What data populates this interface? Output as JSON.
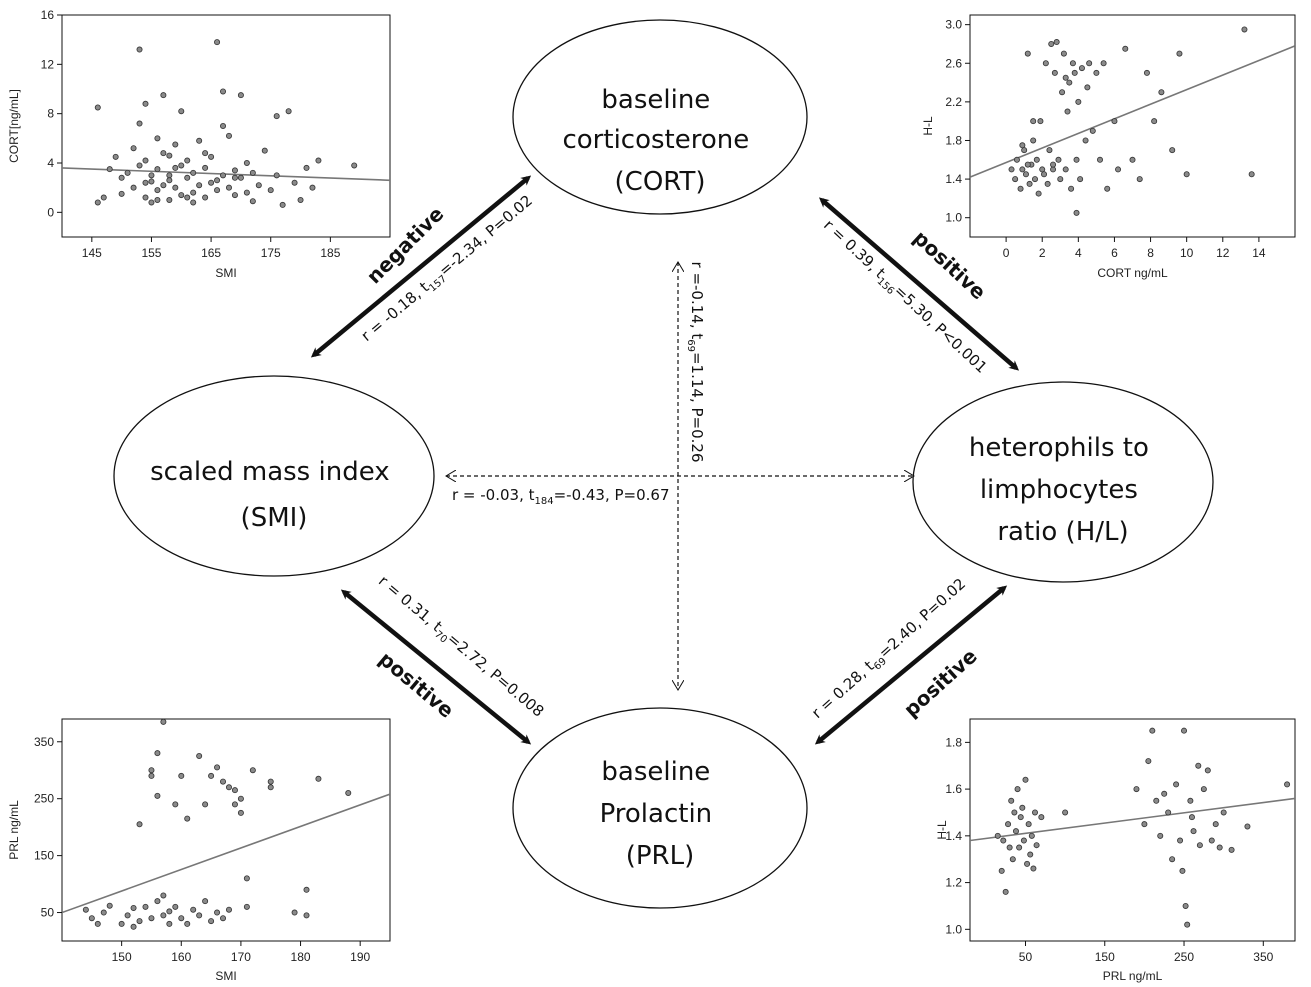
{
  "nodes": [
    {
      "id": "cort",
      "lines": [
        "baseline",
        "corticosterone",
        "(CORT)"
      ]
    },
    {
      "id": "smi",
      "lines": [
        "scaled mass index",
        "(SMI)"
      ]
    },
    {
      "id": "hl",
      "lines": [
        "heterophils to",
        "limphocytes",
        "ratio (H/L)"
      ]
    },
    {
      "id": "prl",
      "lines": [
        "baseline",
        "Prolactin",
        "(PRL)"
      ]
    }
  ],
  "edges": [
    {
      "id": "smi-cort",
      "direction": "negative",
      "r": "r = -0.18, t",
      "df": "157",
      "stats": "=-2.34, P=0.02"
    },
    {
      "id": "cort-hl",
      "direction": "positive",
      "r": "r = 0.39, t",
      "df": "156",
      "stats": "=5.30, P<0.001"
    },
    {
      "id": "cort-prl",
      "direction": "",
      "r": "r =-0.14, t",
      "df": "69",
      "stats": "=1.14, P=0.26"
    },
    {
      "id": "smi-hl",
      "direction": "",
      "r": "r = -0.03, t",
      "df": "184",
      "stats": "=-0.43, P=0.67"
    },
    {
      "id": "smi-prl",
      "direction": "positive",
      "r": "r = 0.31, t",
      "df": "70",
      "stats": "=2.72, P=0.008"
    },
    {
      "id": "prl-hl",
      "direction": "positive",
      "r": "r = 0.28, t",
      "df": "69",
      "stats": "=2.40, P=0.02"
    }
  ],
  "colors": {
    "ink": "#111111",
    "point_fill": "#8a8a8a",
    "fit_line": "#777777"
  },
  "chart_data": [
    {
      "id": "smi-vs-cort",
      "type": "scatter",
      "xlabel": "SMI",
      "ylabel": "CORT[ng/mL]",
      "xlim": [
        140,
        195
      ],
      "ylim": [
        -2,
        16
      ],
      "xticks": [
        145,
        155,
        165,
        175,
        185
      ],
      "yticks": [
        0,
        4,
        8,
        12,
        16
      ],
      "fit": [
        [
          140,
          3.6
        ],
        [
          195,
          2.6
        ]
      ],
      "points": [
        [
          146,
          0.8
        ],
        [
          146,
          8.5
        ],
        [
          147,
          1.2
        ],
        [
          148,
          3.5
        ],
        [
          149,
          4.5
        ],
        [
          150,
          2.8
        ],
        [
          150,
          1.5
        ],
        [
          151,
          3.2
        ],
        [
          152,
          5.2
        ],
        [
          152,
          2.0
        ],
        [
          153,
          7.2
        ],
        [
          153,
          3.8
        ],
        [
          153,
          13.2
        ],
        [
          154,
          1.2
        ],
        [
          154,
          4.2
        ],
        [
          154,
          8.8
        ],
        [
          155,
          2.5
        ],
        [
          155,
          3.0
        ],
        [
          155,
          0.8
        ],
        [
          156,
          6.0
        ],
        [
          156,
          1.8
        ],
        [
          156,
          3.5
        ],
        [
          157,
          2.2
        ],
        [
          157,
          4.8
        ],
        [
          157,
          9.5
        ],
        [
          158,
          1.0
        ],
        [
          158,
          3.0
        ],
        [
          158,
          2.6
        ],
        [
          159,
          5.5
        ],
        [
          159,
          2.0
        ],
        [
          160,
          3.8
        ],
        [
          160,
          1.4
        ],
        [
          160,
          8.2
        ],
        [
          161,
          2.8
        ],
        [
          161,
          4.2
        ],
        [
          162,
          1.6
        ],
        [
          162,
          3.2
        ],
        [
          163,
          5.8
        ],
        [
          163,
          2.2
        ],
        [
          164,
          1.2
        ],
        [
          164,
          3.6
        ],
        [
          165,
          4.5
        ],
        [
          165,
          2.4
        ],
        [
          166,
          13.8
        ],
        [
          166,
          1.8
        ],
        [
          167,
          3.0
        ],
        [
          167,
          9.8
        ],
        [
          168,
          2.0
        ],
        [
          168,
          6.2
        ],
        [
          169,
          3.4
        ],
        [
          169,
          1.4
        ],
        [
          170,
          9.5
        ],
        [
          170,
          2.8
        ],
        [
          171,
          4.0
        ],
        [
          171,
          1.6
        ],
        [
          172,
          3.2
        ],
        [
          173,
          2.2
        ],
        [
          174,
          5.0
        ],
        [
          175,
          1.8
        ],
        [
          176,
          7.8
        ],
        [
          176,
          3.0
        ],
        [
          177,
          0.6
        ],
        [
          178,
          8.2
        ],
        [
          179,
          2.4
        ],
        [
          180,
          1.0
        ],
        [
          181,
          3.6
        ],
        [
          182,
          2.0
        ],
        [
          183,
          4.2
        ],
        [
          189,
          3.8
        ],
        [
          158,
          4.6
        ],
        [
          162,
          0.8
        ],
        [
          167,
          7.0
        ],
        [
          172,
          0.9
        ],
        [
          154,
          2.4
        ],
        [
          159,
          3.6
        ],
        [
          164,
          4.8
        ],
        [
          169,
          2.8
        ],
        [
          156,
          1.0
        ],
        [
          161,
          1.2
        ],
        [
          166,
          2.6
        ]
      ]
    },
    {
      "id": "cort-vs-hl",
      "type": "scatter",
      "xlabel": "CORT  ng/mL",
      "ylabel": "H-L",
      "xlim": [
        -2,
        16
      ],
      "ylim": [
        0.8,
        3.1
      ],
      "xticks": [
        0,
        2,
        4,
        6,
        8,
        10,
        12,
        14
      ],
      "yticks": [
        1.0,
        1.4,
        1.8,
        2.2,
        2.6,
        3.0
      ],
      "fit": [
        [
          -2,
          1.42
        ],
        [
          16,
          2.78
        ]
      ],
      "points": [
        [
          0.3,
          1.5
        ],
        [
          0.5,
          1.4
        ],
        [
          0.6,
          1.6
        ],
        [
          0.8,
          1.3
        ],
        [
          0.9,
          1.5
        ],
        [
          1.0,
          1.7
        ],
        [
          1.1,
          1.45
        ],
        [
          1.2,
          2.7
        ],
        [
          1.3,
          1.35
        ],
        [
          1.4,
          1.55
        ],
        [
          1.5,
          1.8
        ],
        [
          1.6,
          1.4
        ],
        [
          1.7,
          1.6
        ],
        [
          1.8,
          1.25
        ],
        [
          1.9,
          2.0
        ],
        [
          2.0,
          1.5
        ],
        [
          2.1,
          1.45
        ],
        [
          2.2,
          2.6
        ],
        [
          2.3,
          1.35
        ],
        [
          2.4,
          1.7
        ],
        [
          2.5,
          2.8
        ],
        [
          2.6,
          1.5
        ],
        [
          2.7,
          2.5
        ],
        [
          2.8,
          2.82
        ],
        [
          2.9,
          1.6
        ],
        [
          3.0,
          1.4
        ],
        [
          3.1,
          2.3
        ],
        [
          3.2,
          2.7
        ],
        [
          3.3,
          1.5
        ],
        [
          3.4,
          2.1
        ],
        [
          3.5,
          2.4
        ],
        [
          3.6,
          1.3
        ],
        [
          3.7,
          2.6
        ],
        [
          3.8,
          2.5
        ],
        [
          3.9,
          1.6
        ],
        [
          4.0,
          2.2
        ],
        [
          4.1,
          1.4
        ],
        [
          4.2,
          2.55
        ],
        [
          4.4,
          1.8
        ],
        [
          4.6,
          2.6
        ],
        [
          4.8,
          1.9
        ],
        [
          5.0,
          2.5
        ],
        [
          5.2,
          1.6
        ],
        [
          5.4,
          2.6
        ],
        [
          5.6,
          1.3
        ],
        [
          6.0,
          2.0
        ],
        [
          6.2,
          1.5
        ],
        [
          6.6,
          2.75
        ],
        [
          7.0,
          1.6
        ],
        [
          7.4,
          1.4
        ],
        [
          7.8,
          2.5
        ],
        [
          8.2,
          2.0
        ],
        [
          8.6,
          2.3
        ],
        [
          9.2,
          1.7
        ],
        [
          9.6,
          2.7
        ],
        [
          10.0,
          1.45
        ],
        [
          13.2,
          2.95
        ],
        [
          13.6,
          1.45
        ],
        [
          3.9,
          1.05
        ],
        [
          1.5,
          2.0
        ],
        [
          2.6,
          1.55
        ],
        [
          0.9,
          1.75
        ],
        [
          3.3,
          2.45
        ],
        [
          4.5,
          2.35
        ],
        [
          1.2,
          1.55
        ]
      ]
    },
    {
      "id": "smi-vs-prl",
      "type": "scatter",
      "xlabel": "SMI",
      "ylabel": "PRL  ng/mL",
      "xlim": [
        140,
        195
      ],
      "ylim": [
        0,
        390
      ],
      "xticks": [
        150,
        160,
        170,
        180,
        190
      ],
      "yticks": [
        50,
        150,
        250,
        350
      ],
      "fit": [
        [
          140,
          50
        ],
        [
          195,
          258
        ]
      ],
      "points": [
        [
          144,
          55
        ],
        [
          145,
          40
        ],
        [
          146,
          30
        ],
        [
          147,
          50
        ],
        [
          148,
          62
        ],
        [
          150,
          30
        ],
        [
          151,
          45
        ],
        [
          152,
          25
        ],
        [
          152,
          58
        ],
        [
          153,
          205
        ],
        [
          153,
          35
        ],
        [
          154,
          60
        ],
        [
          155,
          290
        ],
        [
          155,
          300
        ],
        [
          155,
          40
        ],
        [
          156,
          255
        ],
        [
          156,
          330
        ],
        [
          156,
          70
        ],
        [
          157,
          80
        ],
        [
          157,
          45
        ],
        [
          157,
          385
        ],
        [
          158,
          30
        ],
        [
          158,
          52
        ],
        [
          159,
          240
        ],
        [
          159,
          60
        ],
        [
          160,
          40
        ],
        [
          160,
          290
        ],
        [
          161,
          30
        ],
        [
          161,
          215
        ],
        [
          162,
          55
        ],
        [
          163,
          325
        ],
        [
          163,
          45
        ],
        [
          164,
          240
        ],
        [
          164,
          70
        ],
        [
          165,
          290
        ],
        [
          165,
          35
        ],
        [
          166,
          305
        ],
        [
          166,
          50
        ],
        [
          167,
          280
        ],
        [
          167,
          40
        ],
        [
          168,
          270
        ],
        [
          168,
          55
        ],
        [
          169,
          265
        ],
        [
          169,
          240
        ],
        [
          170,
          225
        ],
        [
          170,
          250
        ],
        [
          171,
          110
        ],
        [
          171,
          60
        ],
        [
          172,
          300
        ],
        [
          175,
          270
        ],
        [
          175,
          280
        ],
        [
          179,
          50
        ],
        [
          181,
          90
        ],
        [
          181,
          45
        ],
        [
          183,
          285
        ],
        [
          188,
          260
        ]
      ]
    },
    {
      "id": "prl-vs-hl",
      "type": "scatter",
      "xlabel": "PRL  ng/mL",
      "ylabel": "H-L",
      "xlim": [
        -20,
        390
      ],
      "ylim": [
        0.95,
        1.9
      ],
      "xticks": [
        50,
        150,
        250,
        350
      ],
      "yticks": [
        1.0,
        1.2,
        1.4,
        1.6,
        1.8
      ],
      "fit": [
        [
          -20,
          1.38
        ],
        [
          390,
          1.56
        ]
      ],
      "points": [
        [
          15,
          1.4
        ],
        [
          20,
          1.25
        ],
        [
          22,
          1.38
        ],
        [
          25,
          1.16
        ],
        [
          28,
          1.45
        ],
        [
          30,
          1.35
        ],
        [
          32,
          1.55
        ],
        [
          34,
          1.3
        ],
        [
          36,
          1.5
        ],
        [
          38,
          1.42
        ],
        [
          40,
          1.6
        ],
        [
          42,
          1.35
        ],
        [
          44,
          1.48
        ],
        [
          46,
          1.52
        ],
        [
          48,
          1.38
        ],
        [
          50,
          1.64
        ],
        [
          52,
          1.28
        ],
        [
          54,
          1.45
        ],
        [
          56,
          1.32
        ],
        [
          58,
          1.4
        ],
        [
          60,
          1.26
        ],
        [
          62,
          1.5
        ],
        [
          64,
          1.36
        ],
        [
          70,
          1.48
        ],
        [
          100,
          1.5
        ],
        [
          190,
          1.6
        ],
        [
          200,
          1.45
        ],
        [
          205,
          1.72
        ],
        [
          210,
          1.85
        ],
        [
          215,
          1.55
        ],
        [
          220,
          1.4
        ],
        [
          230,
          1.5
        ],
        [
          240,
          1.62
        ],
        [
          245,
          1.38
        ],
        [
          248,
          1.25
        ],
        [
          250,
          1.85
        ],
        [
          252,
          1.1
        ],
        [
          254,
          1.02
        ],
        [
          258,
          1.55
        ],
        [
          262,
          1.42
        ],
        [
          268,
          1.7
        ],
        [
          275,
          1.6
        ],
        [
          280,
          1.68
        ],
        [
          285,
          1.38
        ],
        [
          290,
          1.45
        ],
        [
          295,
          1.35
        ],
        [
          300,
          1.5
        ],
        [
          310,
          1.34
        ],
        [
          330,
          1.44
        ],
        [
          380,
          1.62
        ],
        [
          235,
          1.3
        ],
        [
          225,
          1.58
        ],
        [
          260,
          1.48
        ],
        [
          270,
          1.36
        ]
      ]
    }
  ]
}
